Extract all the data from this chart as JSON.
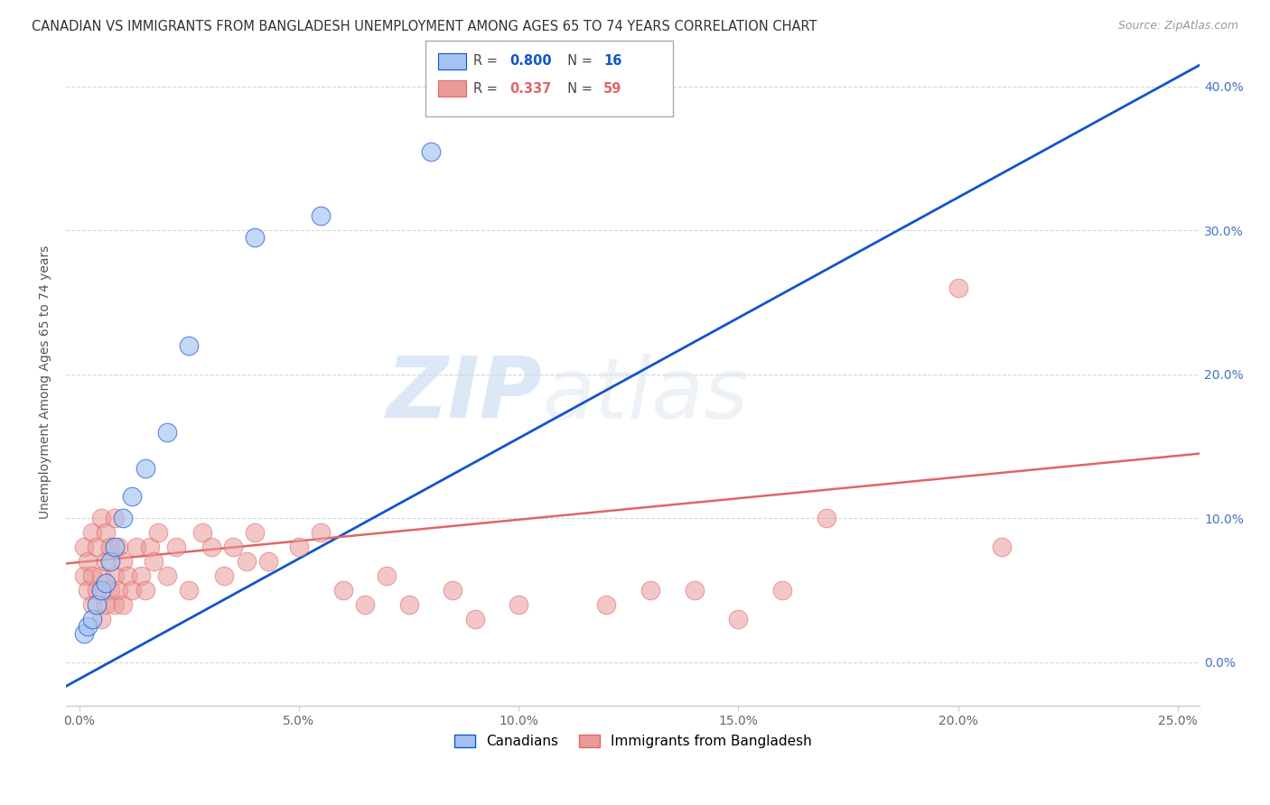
{
  "title": "CANADIAN VS IMMIGRANTS FROM BANGLADESH UNEMPLOYMENT AMONG AGES 65 TO 74 YEARS CORRELATION CHART",
  "source": "Source: ZipAtlas.com",
  "ylabel": "Unemployment Among Ages 65 to 74 years",
  "watermark_zip": "ZIP",
  "watermark_atlas": "atlas",
  "xlim": [
    -0.003,
    0.255
  ],
  "ylim": [
    -0.03,
    0.42
  ],
  "xticks": [
    0.0,
    0.05,
    0.1,
    0.15,
    0.2,
    0.25
  ],
  "yticks": [
    0.0,
    0.1,
    0.2,
    0.3,
    0.4
  ],
  "xtick_labels": [
    "0.0%",
    "5.0%",
    "10.0%",
    "15.0%",
    "20.0%",
    "25.0%"
  ],
  "ytick_labels": [
    "0.0%",
    "10.0%",
    "20.0%",
    "30.0%",
    "40.0%"
  ],
  "canadian_color": "#a4c2f4",
  "bangladesh_color": "#ea9999",
  "canadian_line_color": "#1155cc",
  "bangladesh_line_color": "#e06666",
  "canadian_edge_color": "#6fa8dc",
  "bangladesh_edge_color": "#cc4125",
  "R_canadian": 0.8,
  "N_canadian": 16,
  "R_bangladesh": 0.337,
  "N_bangladesh": 59,
  "canadian_x": [
    0.001,
    0.002,
    0.003,
    0.004,
    0.005,
    0.006,
    0.007,
    0.008,
    0.01,
    0.012,
    0.015,
    0.02,
    0.025,
    0.04,
    0.055,
    0.08
  ],
  "canadian_y": [
    0.02,
    0.025,
    0.03,
    0.04,
    0.05,
    0.055,
    0.07,
    0.08,
    0.1,
    0.115,
    0.135,
    0.16,
    0.22,
    0.295,
    0.31,
    0.355
  ],
  "bangladesh_x": [
    0.001,
    0.001,
    0.002,
    0.002,
    0.003,
    0.003,
    0.003,
    0.004,
    0.004,
    0.005,
    0.005,
    0.005,
    0.006,
    0.006,
    0.006,
    0.007,
    0.007,
    0.008,
    0.008,
    0.008,
    0.009,
    0.009,
    0.01,
    0.01,
    0.011,
    0.012,
    0.013,
    0.014,
    0.015,
    0.016,
    0.017,
    0.018,
    0.02,
    0.022,
    0.025,
    0.028,
    0.03,
    0.033,
    0.035,
    0.038,
    0.04,
    0.043,
    0.05,
    0.055,
    0.06,
    0.065,
    0.07,
    0.075,
    0.085,
    0.09,
    0.1,
    0.12,
    0.13,
    0.14,
    0.15,
    0.16,
    0.17,
    0.2,
    0.21
  ],
  "bangladesh_y": [
    0.06,
    0.08,
    0.05,
    0.07,
    0.04,
    0.06,
    0.09,
    0.05,
    0.08,
    0.03,
    0.06,
    0.1,
    0.04,
    0.07,
    0.09,
    0.05,
    0.08,
    0.04,
    0.06,
    0.1,
    0.05,
    0.08,
    0.04,
    0.07,
    0.06,
    0.05,
    0.08,
    0.06,
    0.05,
    0.08,
    0.07,
    0.09,
    0.06,
    0.08,
    0.05,
    0.09,
    0.08,
    0.06,
    0.08,
    0.07,
    0.09,
    0.07,
    0.08,
    0.09,
    0.05,
    0.04,
    0.06,
    0.04,
    0.05,
    0.03,
    0.04,
    0.04,
    0.05,
    0.05,
    0.03,
    0.05,
    0.1,
    0.26,
    0.08
  ],
  "can_trend_x0": -0.005,
  "can_trend_y0": -0.02,
  "can_trend_x1": 0.255,
  "can_trend_y1": 0.415,
  "bd_trend_x0": -0.005,
  "bd_trend_y0": 0.068,
  "bd_trend_x1": 0.255,
  "bd_trend_y1": 0.145
}
